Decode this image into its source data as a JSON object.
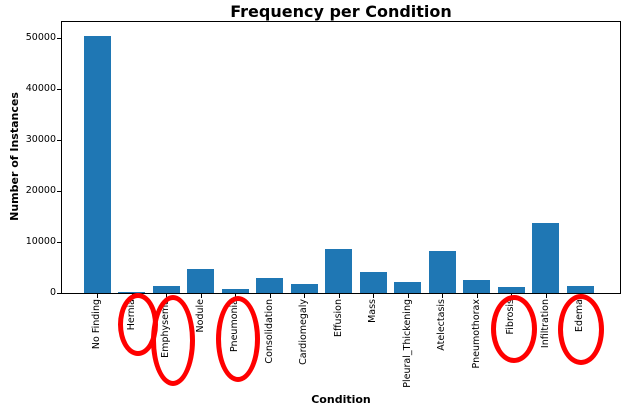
{
  "chart_data": {
    "type": "bar",
    "title": "Frequency per Condition",
    "xlabel": "Condition",
    "ylabel": "Number of Instances",
    "categories": [
      "No Finding",
      "Hernia",
      "Emphysema",
      "Nodule",
      "Pneumonia",
      "Consolidation",
      "Cardiomegaly",
      "Effusion",
      "Mass",
      "Pleural_Thickening",
      "Atelectasis",
      "Pneumothorax",
      "Fibrosis",
      "Infiltration",
      "Edema"
    ],
    "values": [
      50500,
      141,
      1423,
      4708,
      876,
      2852,
      1707,
      8659,
      4034,
      2242,
      8280,
      2637,
      1251,
      13782,
      1378
    ],
    "yticks": [
      0,
      10000,
      20000,
      30000,
      40000,
      50000
    ],
    "ylim": [
      0,
      53200
    ],
    "grid": false,
    "bar_color": "#1f77b4",
    "annotation_color": "#ff0000",
    "circled_categories": [
      "Hernia",
      "Emphysema",
      "Pneumonia",
      "Fibrosis",
      "Edema"
    ]
  }
}
